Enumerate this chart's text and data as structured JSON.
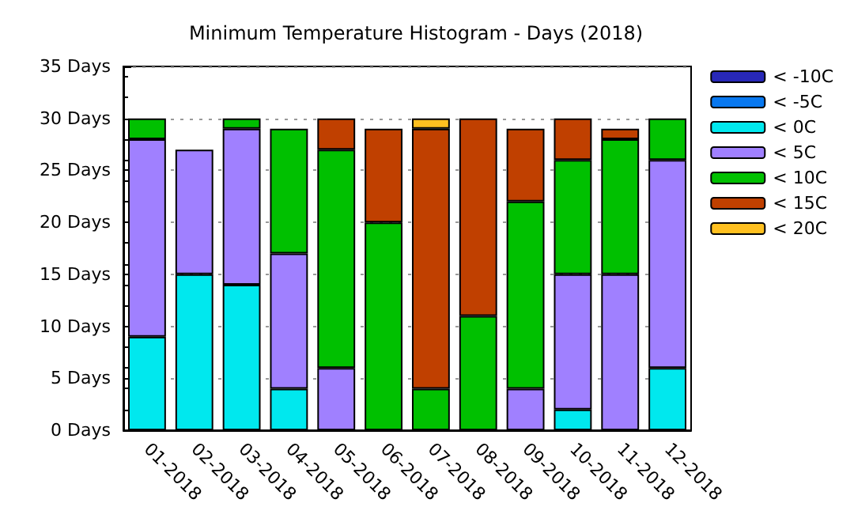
{
  "chart_data": {
    "type": "bar",
    "title": "Minimum Temperature Histogram - Days (2018)",
    "stacked": true,
    "categories": [
      "01-2018",
      "02-2018",
      "03-2018",
      "04-2018",
      "05-2018",
      "06-2018",
      "07-2018",
      "08-2018",
      "09-2018",
      "10-2018",
      "11-2018",
      "12-2018"
    ],
    "series": [
      {
        "name": "< -10C",
        "color": "#2828b8",
        "values": [
          0,
          0,
          0,
          0,
          0,
          0,
          0,
          0,
          0,
          0,
          0,
          0
        ]
      },
      {
        "name": "< -5C",
        "color": "#0878f0",
        "values": [
          0,
          0,
          0,
          0,
          0,
          0,
          0,
          0,
          0,
          0,
          0,
          0
        ]
      },
      {
        "name": "< 0C",
        "color": "#00e8ee",
        "values": [
          9,
          15,
          14,
          4,
          0,
          0,
          0,
          0,
          0,
          2,
          0,
          6
        ]
      },
      {
        "name": "< 5C",
        "color": "#a080ff",
        "values": [
          19,
          12,
          15,
          13,
          6,
          0,
          0,
          0,
          4,
          13,
          15,
          20
        ]
      },
      {
        "name": "< 10C",
        "color": "#00c000",
        "values": [
          2,
          0,
          1,
          12,
          21,
          20,
          4,
          11,
          18,
          11,
          13,
          4
        ]
      },
      {
        "name": "< 15C",
        "color": "#c04000",
        "values": [
          0,
          0,
          0,
          0,
          3,
          9,
          25,
          19,
          7,
          4,
          1,
          0
        ]
      },
      {
        "name": "< 20C",
        "color": "#ffc020",
        "values": [
          0,
          0,
          0,
          0,
          0,
          0,
          1,
          0,
          0,
          0,
          0,
          0
        ]
      }
    ],
    "ylim": [
      0,
      35
    ],
    "yticks": [
      {
        "value": 0,
        "label": "0 Days"
      },
      {
        "value": 5,
        "label": "5 Days"
      },
      {
        "value": 10,
        "label": "10 Days"
      },
      {
        "value": 15,
        "label": "15 Days"
      },
      {
        "value": 20,
        "label": "20 Days"
      },
      {
        "value": 25,
        "label": "25 Days"
      },
      {
        "value": 30,
        "label": "30 Days"
      },
      {
        "value": 35,
        "label": "35 Days"
      }
    ],
    "grid": "y",
    "legend": "right"
  }
}
